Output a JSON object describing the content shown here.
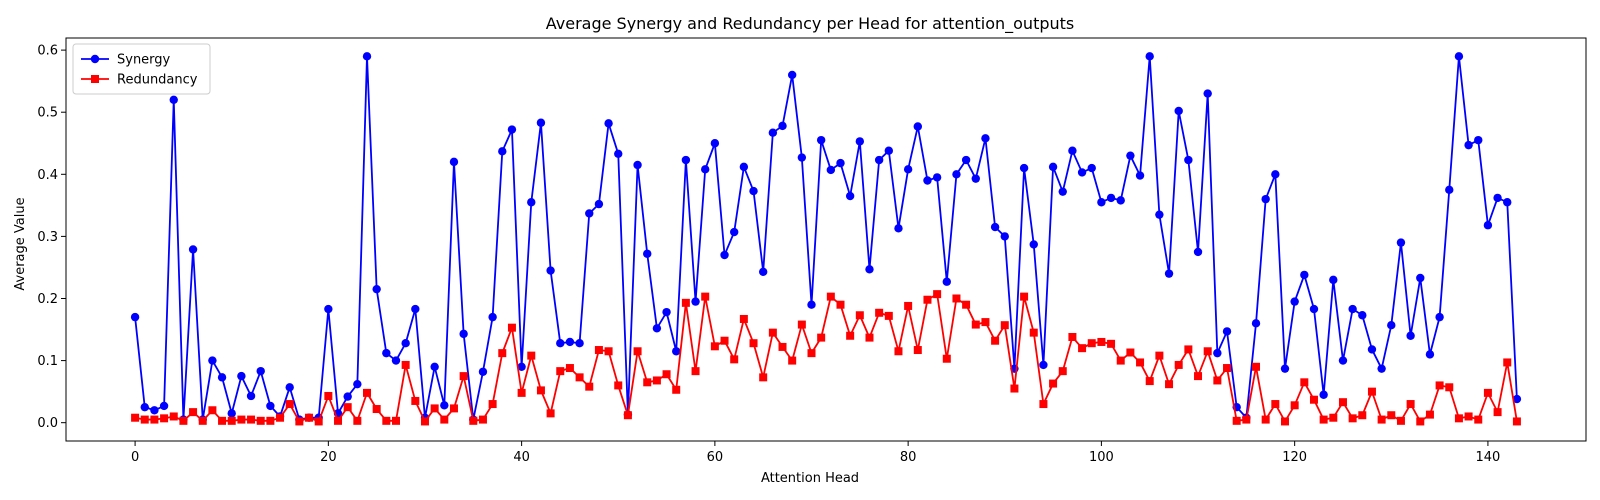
{
  "chart_data": {
    "type": "line",
    "title": "Average Synergy and Redundancy per Head for attention_outputs",
    "xlabel": "Attention Head",
    "ylabel": "Average Value",
    "xlim": [
      -7.15,
      150.15
    ],
    "ylim": [
      -0.0295,
      0.6195
    ],
    "xticks": [
      0,
      20,
      40,
      60,
      80,
      100,
      120,
      140
    ],
    "yticks": [
      0.0,
      0.1,
      0.2,
      0.3,
      0.4,
      0.5,
      0.6
    ],
    "ytick_labels": [
      "0.0",
      "0.1",
      "0.2",
      "0.3",
      "0.4",
      "0.5",
      "0.6"
    ],
    "legend_position": "top-left",
    "grid": false,
    "series": [
      {
        "name": "Synergy",
        "color": "#0000ff",
        "marker": "circle",
        "values": [
          0.17,
          0.025,
          0.02,
          0.027,
          0.52,
          0.005,
          0.279,
          0.005,
          0.1,
          0.073,
          0.015,
          0.075,
          0.043,
          0.083,
          0.027,
          0.01,
          0.057,
          0.005,
          0.008,
          0.008,
          0.183,
          0.015,
          0.042,
          0.062,
          0.59,
          0.215,
          0.112,
          0.1,
          0.128,
          0.183,
          0.008,
          0.09,
          0.028,
          0.42,
          0.143,
          0.005,
          0.082,
          0.17,
          0.437,
          0.472,
          0.09,
          0.355,
          0.483,
          0.245,
          0.128,
          0.13,
          0.128,
          0.337,
          0.352,
          0.482,
          0.433,
          0.013,
          0.415,
          0.272,
          0.152,
          0.178,
          0.115,
          0.423,
          0.195,
          0.408,
          0.45,
          0.27,
          0.307,
          0.412,
          0.373,
          0.243,
          0.467,
          0.478,
          0.56,
          0.427,
          0.19,
          0.455,
          0.407,
          0.418,
          0.365,
          0.453,
          0.247,
          0.423,
          0.438,
          0.313,
          0.408,
          0.477,
          0.39,
          0.395,
          0.227,
          0.4,
          0.423,
          0.393,
          0.458,
          0.315,
          0.3,
          0.087,
          0.41,
          0.287,
          0.093,
          0.412,
          0.372,
          0.438,
          0.403,
          0.41,
          0.355,
          0.362,
          0.358,
          0.43,
          0.398,
          0.59,
          0.335,
          0.24,
          0.502,
          0.423,
          0.275,
          0.53,
          0.112,
          0.147,
          0.025,
          0.008,
          0.16,
          0.36,
          0.4,
          0.087,
          0.195,
          0.238,
          0.183,
          0.045,
          0.23,
          0.1,
          0.183,
          0.173,
          0.118,
          0.087,
          0.157,
          0.29,
          0.14,
          0.233,
          0.11,
          0.17,
          0.375,
          0.59,
          0.447,
          0.455,
          0.318,
          0.362,
          0.355,
          0.038
        ]
      },
      {
        "name": "Redundancy",
        "color": "#ff0000",
        "marker": "square",
        "values": [
          0.008,
          0.005,
          0.005,
          0.007,
          0.01,
          0.003,
          0.017,
          0.003,
          0.02,
          0.003,
          0.003,
          0.005,
          0.005,
          0.003,
          0.003,
          0.008,
          0.03,
          0.002,
          0.008,
          0.002,
          0.043,
          0.003,
          0.025,
          0.003,
          0.048,
          0.022,
          0.003,
          0.003,
          0.093,
          0.035,
          0.002,
          0.023,
          0.005,
          0.023,
          0.075,
          0.003,
          0.005,
          0.03,
          0.112,
          0.153,
          0.048,
          0.108,
          0.052,
          0.015,
          0.083,
          0.088,
          0.073,
          0.058,
          0.117,
          0.115,
          0.06,
          0.012,
          0.115,
          0.065,
          0.068,
          0.078,
          0.053,
          0.193,
          0.083,
          0.203,
          0.123,
          0.132,
          0.102,
          0.167,
          0.128,
          0.073,
          0.145,
          0.122,
          0.1,
          0.158,
          0.112,
          0.137,
          0.203,
          0.19,
          0.14,
          0.173,
          0.137,
          0.177,
          0.172,
          0.115,
          0.188,
          0.117,
          0.198,
          0.207,
          0.103,
          0.2,
          0.19,
          0.158,
          0.162,
          0.132,
          0.157,
          0.055,
          0.203,
          0.145,
          0.03,
          0.063,
          0.083,
          0.138,
          0.12,
          0.128,
          0.13,
          0.127,
          0.1,
          0.113,
          0.097,
          0.067,
          0.108,
          0.062,
          0.093,
          0.118,
          0.075,
          0.115,
          0.068,
          0.088,
          0.003,
          0.005,
          0.09,
          0.005,
          0.03,
          0.002,
          0.028,
          0.065,
          0.037,
          0.005,
          0.008,
          0.033,
          0.007,
          0.012,
          0.05,
          0.005,
          0.012,
          0.003,
          0.03,
          0.002,
          0.013,
          0.06,
          0.057,
          0.007,
          0.01,
          0.005,
          0.048,
          0.017,
          0.097,
          0.002
        ]
      }
    ]
  }
}
